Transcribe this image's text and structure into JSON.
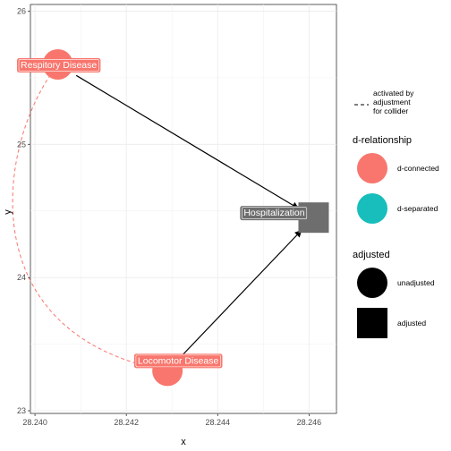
{
  "chart_data": {
    "type": "dag",
    "xlabel": "x",
    "ylabel": "y",
    "xlim": [
      28.2399,
      28.2466
    ],
    "ylim": [
      22.98,
      26.05
    ],
    "x_ticks": [
      {
        "value": 28.24,
        "label": "28.240"
      },
      {
        "value": 28.242,
        "label": "28.242"
      },
      {
        "value": 28.244,
        "label": "28.244"
      },
      {
        "value": 28.246,
        "label": "28.246"
      }
    ],
    "y_ticks": [
      {
        "value": 23,
        "label": "23"
      },
      {
        "value": 24,
        "label": "24"
      },
      {
        "value": 25,
        "label": "25"
      },
      {
        "value": 26,
        "label": "26"
      }
    ],
    "grid": true,
    "nodes": [
      {
        "id": "resp",
        "label": "Respitory Disease",
        "x": 28.2405,
        "y": 25.6,
        "shape": "circle",
        "d_relationship": "d-connected",
        "adjusted": "unadjusted",
        "color": "#F8766D"
      },
      {
        "id": "loco",
        "label": "Locomotor Disease",
        "x": 28.2429,
        "y": 23.3,
        "shape": "circle",
        "d_relationship": "d-connected",
        "adjusted": "unadjusted",
        "color": "#F8766D"
      },
      {
        "id": "hosp",
        "label": "Hospitalization",
        "x": 28.2461,
        "y": 24.45,
        "shape": "square",
        "adjusted": "adjusted",
        "color": "#6E6E6E"
      }
    ],
    "edges": [
      {
        "from": "resp",
        "to": "hosp",
        "type": "directed"
      },
      {
        "from": "loco",
        "to": "hosp",
        "type": "directed"
      }
    ],
    "collider_path": {
      "from": "resp",
      "to": "loco",
      "style": "dashed",
      "color": "#F8766D"
    },
    "legend": {
      "line": {
        "label": "activated by\nadjustment\nfor collider"
      },
      "d_relationship": {
        "title": "d-relationship",
        "items": [
          {
            "label": "d-connected",
            "color": "#F8766D"
          },
          {
            "label": "d-separated",
            "color": "#17BEBB"
          }
        ]
      },
      "adjusted": {
        "title": "adjusted",
        "items": [
          {
            "label": "unadjusted",
            "shape": "circle"
          },
          {
            "label": "adjusted",
            "shape": "square"
          }
        ]
      }
    }
  }
}
